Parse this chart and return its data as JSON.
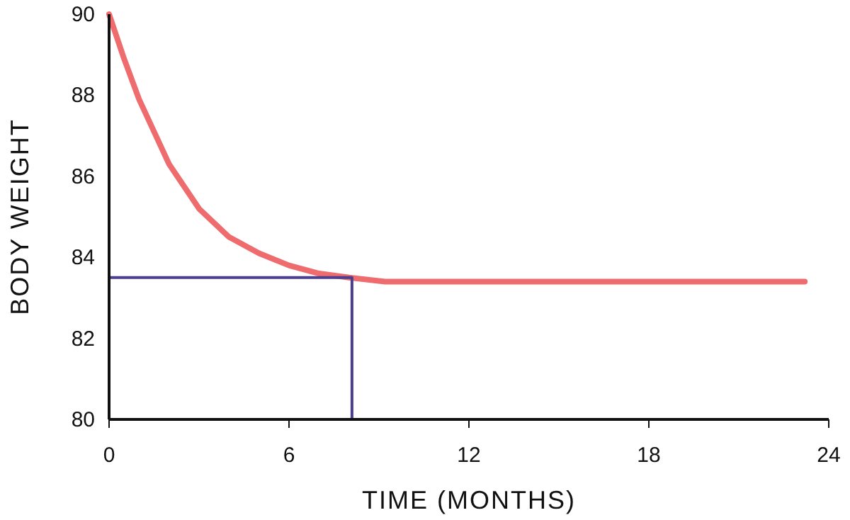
{
  "chart_data": {
    "type": "line",
    "xlabel": "TIME (MONTHS)",
    "ylabel": "BODY WEIGHT",
    "xlim": [
      0,
      24
    ],
    "xticks": [
      0,
      6,
      12,
      18,
      24
    ],
    "ylim": [
      80,
      90
    ],
    "yticks": [
      80,
      82,
      84,
      86,
      88,
      90
    ],
    "series": [
      {
        "color": "#ee6b6e",
        "x": [
          0,
          0.5,
          1,
          1.5,
          2,
          3,
          4,
          5,
          6,
          7,
          8,
          9.2,
          23.2
        ],
        "values": [
          90,
          88.9,
          87.9,
          87.1,
          86.3,
          85.2,
          84.5,
          84.1,
          83.8,
          83.6,
          83.5,
          83.4,
          83.4
        ]
      },
      {
        "color": "#4b3f8f",
        "x": [
          0,
          8.1,
          8.1
        ],
        "values": [
          83.5,
          83.5,
          80
        ]
      }
    ]
  }
}
